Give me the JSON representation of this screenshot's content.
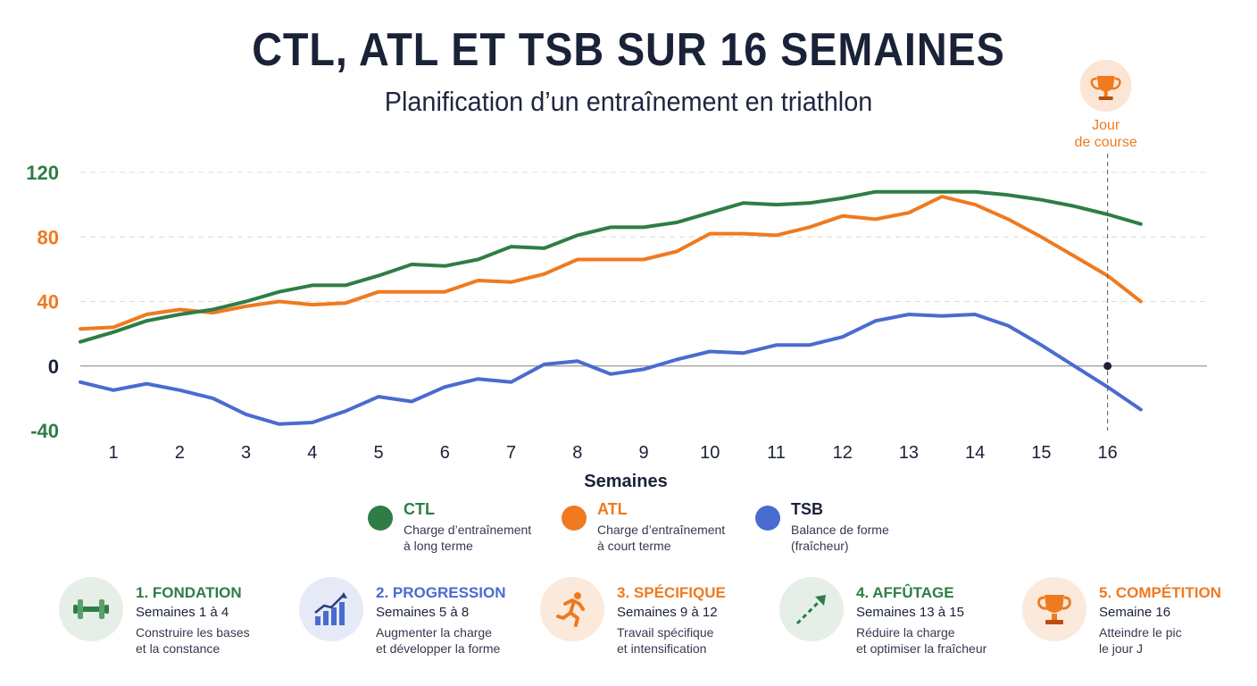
{
  "title": "CTL, ATL ET TSB SUR 16 SEMAINES",
  "subtitle": "Planification d’un entraînement en triathlon",
  "race_marker": {
    "line1": "Jour",
    "line2": "de course",
    "icon": "trophy-icon",
    "week": 16
  },
  "colors": {
    "ctl": "#2e7d46",
    "atl": "#ef7a1f",
    "tsb": "#4a6bd0",
    "text": "#1a2238"
  },
  "chart_data": {
    "type": "line",
    "title": "CTL, ATL ET TSB SUR 16 SEMAINES",
    "subtitle": "Planification d’un entraînement en triathlon",
    "xlabel": "Semaines",
    "ylabel": "",
    "ylim": [
      -40,
      120
    ],
    "y_ticks": [
      120,
      80,
      40,
      0,
      -40
    ],
    "x_ticks": [
      1,
      2,
      3,
      4,
      5,
      6,
      7,
      8,
      9,
      10,
      11,
      12,
      13,
      14,
      15,
      16
    ],
    "xlim": [
      0.5,
      17.5
    ],
    "grid": true,
    "legend_position": "bottom",
    "x": [
      0.5,
      1.0,
      1.5,
      2.0,
      2.5,
      3.0,
      3.5,
      4.0,
      4.5,
      5.0,
      5.5,
      6.0,
      6.5,
      7.0,
      7.5,
      8.0,
      8.5,
      9.0,
      9.5,
      10.0,
      10.5,
      11.0,
      11.5,
      12.0,
      12.5,
      13.0,
      13.5,
      14.0,
      14.5,
      15.0,
      15.5,
      16.0,
      16.5
    ],
    "series": [
      {
        "name": "CTL",
        "values": [
          15,
          21,
          28,
          32,
          35,
          40,
          46,
          50,
          50,
          56,
          63,
          62,
          66,
          74,
          73,
          81,
          86,
          86,
          89,
          95,
          101,
          100,
          101,
          104,
          108,
          108,
          108,
          108,
          106,
          103,
          99,
          94,
          88
        ]
      },
      {
        "name": "ATL",
        "values": [
          23,
          24,
          32,
          35,
          33,
          37,
          40,
          38,
          39,
          46,
          46,
          46,
          53,
          52,
          57,
          66,
          66,
          66,
          71,
          82,
          82,
          81,
          86,
          93,
          91,
          95,
          105,
          100,
          91,
          80,
          68,
          56,
          40
        ]
      },
      {
        "name": "TSB",
        "values": [
          -10,
          -15,
          -11,
          -15,
          -20,
          -30,
          -36,
          -35,
          -28,
          -19,
          -22,
          -13,
          -8,
          -10,
          1,
          3,
          -5,
          -2,
          4,
          9,
          8,
          13,
          13,
          18,
          28,
          32,
          31,
          32,
          25,
          13,
          0,
          -13,
          -27
        ]
      }
    ]
  },
  "legend": [
    {
      "name": "CTL",
      "desc1": "Charge d’entraînement",
      "desc2": "à long terme"
    },
    {
      "name": "ATL",
      "desc1": "Charge d’entraînement",
      "desc2": "à court terme"
    },
    {
      "name": "TSB",
      "desc1": "Balance de forme",
      "desc2": "(fraîcheur)"
    }
  ],
  "phases": [
    {
      "title": "1. FONDATION",
      "weeks": "Semaines 1 à 4",
      "desc1": "Construire les bases",
      "desc2": "et la constance",
      "icon": "dumbbell-icon",
      "color": "#2e7d46",
      "bg": "#e6eee8"
    },
    {
      "title": "2. PROGRESSION",
      "weeks": "Semaines 5 à 8",
      "desc1": "Augmenter la charge",
      "desc2": "et développer la forme",
      "icon": "growth-chart-icon",
      "color": "#4a6bd0",
      "bg": "#e6eaf7"
    },
    {
      "title": "3. SPÉCIFIQUE",
      "weeks": "Semaines 9 à 12",
      "desc1": "Travail spécifique",
      "desc2": "et intensification",
      "icon": "runner-icon",
      "color": "#ef7a1f",
      "bg": "#fbe9dc"
    },
    {
      "title": "4. AFFÛTAGE",
      "weeks": "Semaines 13 à 15",
      "desc1": "Réduire la charge",
      "desc2": "et optimiser la fraîcheur",
      "icon": "taper-arrow-icon",
      "color": "#2e7d46",
      "bg": "#e6eee8"
    },
    {
      "title": "5. COMPÉTITION",
      "weeks": "Semaine 16",
      "desc1": "Atteindre le pic",
      "desc2": "le jour J",
      "icon": "trophy-icon",
      "color": "#ef7a1f",
      "bg": "#fbe9dc"
    }
  ]
}
